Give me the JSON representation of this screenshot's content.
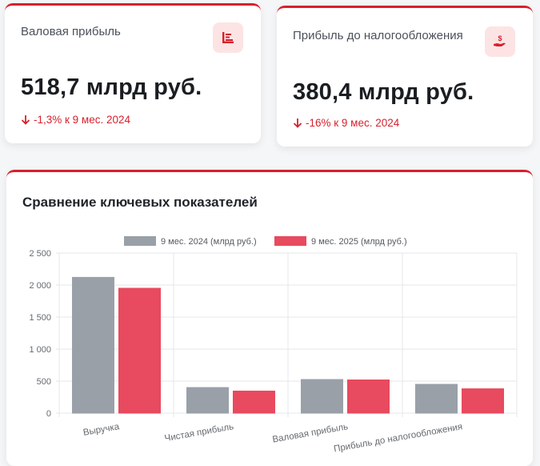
{
  "cards": [
    {
      "title": "Валовая прибыль",
      "value": "518,7 млрд руб.",
      "change": "-1,3% к 9 мес. 2024",
      "icon": "bar-list-icon"
    },
    {
      "title": "Прибыль до налогообложения",
      "value": "380,4 млрд руб.",
      "change": "-16% к 9 мес. 2024",
      "icon": "hand-dollar-icon"
    }
  ],
  "colors": {
    "accent": "#d7202c",
    "series_2024": "#9aa0a8",
    "series_2025": "#e84a5f"
  },
  "chart_title": "Сравнение ключевых показателей",
  "chart_data": {
    "type": "bar",
    "categories": [
      "Выручка",
      "Чистая прибыль",
      "Валовая прибыль",
      "Прибыль до налогообложения"
    ],
    "series": [
      {
        "name": "9 мес. 2024 (млрд руб.)",
        "values": [
          2120,
          400,
          525,
          450
        ]
      },
      {
        "name": "9 мес. 2025 (млрд руб.)",
        "values": [
          1950,
          345,
          518.7,
          380.4
        ]
      }
    ],
    "yticks": [
      "0",
      "500",
      "1 000",
      "1 500",
      "2 000",
      "2 500"
    ],
    "ylim": [
      0,
      2500
    ],
    "legend": "top",
    "grid": true
  }
}
